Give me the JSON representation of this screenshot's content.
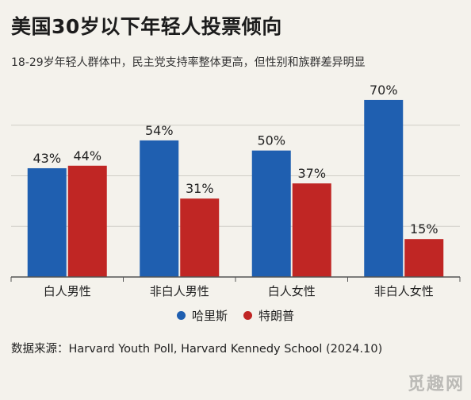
{
  "header": {
    "title": "美国30岁以下年轻人投票倾向",
    "subtitle": "18-29岁年轻人群体中，民主党支持率整体更高，但性别和族群差异明显"
  },
  "source": "数据来源：Harvard Youth Poll, Harvard Kennedy School (2024.10)",
  "watermark": "觅趣网",
  "colors": {
    "harris": "#1f5fb0",
    "trump": "#c02624",
    "grid": "#cfcdc6",
    "axis": "#555555"
  },
  "chart_data": {
    "type": "bar",
    "categories": [
      "白人男性",
      "非白人男性",
      "白人女性",
      "非白人女性"
    ],
    "series": [
      {
        "name": "哈里斯",
        "values": [
          43,
          54,
          50,
          70
        ],
        "labels": [
          "43%",
          "54%",
          "50%",
          "70%"
        ]
      },
      {
        "name": "特朗普",
        "values": [
          44,
          31,
          37,
          15
        ],
        "labels": [
          "44%",
          "31%",
          "37%",
          "15%"
        ]
      }
    ],
    "ylim": [
      0,
      75
    ],
    "grid": true,
    "legend_position": "bottom-center"
  }
}
